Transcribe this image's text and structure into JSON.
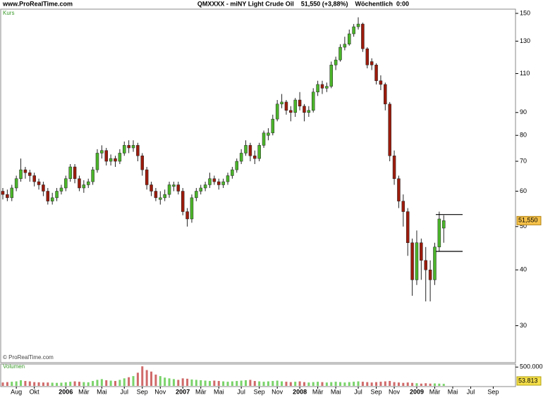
{
  "site": "www.ProRealTime.com",
  "chart_data": {
    "type": "candlestick",
    "title": "QMXXXX - miNY Light Crude Oil    51,550 (+3,88%)    Wöchentlich  0:00",
    "panel_label": "Kurs",
    "copyright": "© ProRealTime.com",
    "volume_label": "Volumen",
    "log_scale": true,
    "up_color": "#4bb52a",
    "down_color": "#9c1b0c",
    "ylim": [
      24.8,
      153.3
    ],
    "yticks": [
      30,
      40,
      50,
      60,
      70,
      80,
      90,
      110,
      130,
      150
    ],
    "categories": [
      null,
      null,
      null,
      "Aug",
      null,
      null,
      null,
      "Okt",
      null,
      null,
      null,
      null,
      null,
      null,
      "2006",
      null,
      null,
      null,
      "Mär",
      null,
      null,
      null,
      "Mai",
      null,
      null,
      null,
      null,
      "Jul",
      null,
      null,
      null,
      "Sep",
      null,
      null,
      null,
      "Nov",
      null,
      null,
      null,
      null,
      "2007",
      null,
      null,
      null,
      "Mär",
      null,
      null,
      null,
      "Mai",
      null,
      null,
      null,
      null,
      "Jul",
      null,
      null,
      null,
      "Sep",
      null,
      null,
      null,
      "Nov",
      null,
      null,
      null,
      null,
      "2008",
      null,
      null,
      null,
      "Mär",
      null,
      null,
      null,
      "Mai",
      null,
      null,
      null,
      null,
      "Jul",
      null,
      null,
      null,
      "Sep",
      null,
      null,
      null,
      "Nov",
      null,
      null,
      null,
      null,
      "2009",
      null,
      null,
      null,
      "Mär",
      null,
      null,
      null,
      "Mai",
      null,
      null,
      null,
      "Jul",
      null,
      null,
      null,
      null,
      "Sep",
      null,
      null
    ],
    "open": [
      60,
      59,
      58,
      61,
      64,
      67,
      66,
      65,
      63,
      62,
      60,
      57,
      58,
      60,
      61,
      64,
      68,
      64,
      61,
      62,
      63,
      67,
      73,
      74,
      70,
      71,
      70,
      73,
      76,
      75,
      76,
      72,
      67,
      62,
      60,
      57.5,
      58,
      59,
      61.5,
      62,
      60,
      54,
      52,
      58,
      60,
      61,
      62,
      64,
      63,
      62,
      63,
      65,
      67,
      70,
      73,
      76,
      72,
      71,
      76,
      80,
      81,
      87,
      94,
      95,
      91,
      90,
      96,
      93,
      90,
      91,
      100,
      104,
      102,
      103,
      115,
      118,
      126,
      128,
      135,
      140,
      142,
      125,
      117,
      115,
      106,
      104,
      94,
      72,
      64,
      57,
      54,
      46,
      38,
      46,
      42,
      40,
      38,
      45,
      49.6,
      null,
      null,
      null,
      null,
      null,
      null,
      null,
      null,
      null,
      null,
      null,
      null,
      null
    ],
    "high": [
      61,
      60.5,
      62,
      65,
      71,
      68,
      67,
      66,
      64,
      63,
      61,
      59.5,
      61,
      62,
      65,
      69,
      69,
      65,
      63.5,
      64,
      68,
      74.5,
      76,
      75,
      72.5,
      72,
      74.5,
      77.5,
      78,
      78,
      77,
      73,
      68,
      63,
      61,
      60,
      60.5,
      63,
      63,
      63,
      61,
      55,
      59,
      61,
      62,
      63,
      66,
      65,
      64,
      64,
      66,
      68,
      71,
      74.5,
      78,
      77,
      74,
      77,
      82,
      83,
      89,
      96,
      99,
      96,
      93,
      97,
      100,
      94,
      93,
      102,
      106,
      106,
      105,
      117,
      120,
      128,
      133,
      138,
      142,
      147,
      143,
      126,
      119,
      116,
      109,
      105,
      95,
      74,
      65,
      59,
      55,
      47,
      49,
      47,
      45,
      42,
      46,
      54,
      53,
      null,
      null,
      null,
      null,
      null,
      null,
      null,
      null,
      null,
      null,
      null,
      null,
      null
    ],
    "low": [
      57.5,
      57,
      57,
      60,
      63,
      64,
      63,
      61.5,
      60.5,
      58.5,
      56,
      56,
      57,
      59,
      60,
      63,
      62.5,
      60,
      59.5,
      61,
      62,
      66,
      71,
      68.5,
      68.5,
      68,
      69,
      72,
      73,
      73.5,
      70,
      65,
      60.5,
      58.5,
      57,
      56,
      57,
      58,
      60,
      59,
      53,
      50,
      51,
      57,
      59,
      60,
      61,
      62,
      60.5,
      61,
      62,
      64,
      66,
      69,
      72,
      70,
      69,
      70,
      75,
      78,
      80,
      86,
      92,
      89,
      86,
      88,
      91,
      86,
      88,
      90,
      98,
      99,
      100,
      102,
      112,
      117,
      124,
      127,
      133,
      138,
      123,
      113,
      112,
      104,
      101,
      91,
      70,
      62,
      55,
      50,
      43,
      35,
      37,
      38,
      34,
      34,
      37,
      44,
      46,
      null,
      null,
      null,
      null,
      null,
      null,
      null,
      null,
      null,
      null,
      null,
      null,
      null
    ],
    "close": [
      59,
      58,
      61,
      64,
      67,
      66,
      65,
      63,
      62,
      60,
      57,
      58,
      60,
      61,
      64,
      68,
      64,
      61,
      62,
      63,
      67,
      73,
      74,
      70,
      71,
      70,
      73,
      76,
      75,
      76,
      72,
      67,
      62,
      60,
      58,
      58,
      59,
      62,
      62,
      60,
      54,
      52,
      58,
      60,
      61,
      62,
      64,
      63,
      62,
      63,
      65,
      67,
      70,
      73,
      76,
      72,
      71,
      76,
      81,
      81,
      87,
      94,
      95,
      91,
      90,
      96,
      93,
      90,
      91,
      100,
      104,
      102,
      103,
      115,
      118,
      126,
      128,
      135,
      140,
      142,
      125,
      115,
      115,
      106,
      104,
      94,
      72,
      64,
      57,
      54,
      46,
      38,
      46,
      42,
      40,
      38,
      45,
      52,
      51.55,
      null,
      null,
      null,
      null,
      null,
      null,
      null,
      null,
      null,
      null,
      null,
      null,
      null
    ],
    "value_labels": [
      null,
      null,
      null,
      null,
      null,
      null,
      null,
      null,
      null,
      null,
      null,
      null,
      null,
      null,
      null,
      null,
      null,
      null,
      null,
      null,
      null,
      null,
      null,
      null,
      null,
      null,
      null,
      null,
      null,
      null,
      null,
      null,
      null,
      null,
      null,
      null,
      null,
      null,
      null,
      null,
      null,
      null,
      null,
      null,
      null,
      null,
      null,
      null,
      null,
      null,
      null,
      null,
      null,
      null,
      null,
      null,
      null,
      null,
      null,
      null,
      null,
      null,
      null,
      null,
      null,
      null,
      null,
      null,
      null,
      null,
      null,
      null,
      null,
      null,
      null,
      null,
      null,
      null,
      null,
      null,
      null,
      null,
      null,
      null,
      null,
      null,
      null,
      null,
      null,
      null,
      null,
      null,
      null,
      null,
      null,
      null,
      null,
      null,
      "51,550",
      null,
      null,
      null,
      null,
      null,
      null,
      null,
      null,
      null,
      null,
      null,
      null,
      null
    ],
    "levels": [
      53.2,
      44
    ],
    "volume": [
      90000,
      100000,
      110000,
      120000,
      150000,
      130000,
      120000,
      100000,
      95000,
      90000,
      90000,
      85000,
      80000,
      85000,
      95000,
      110000,
      120000,
      110000,
      100000,
      95000,
      130000,
      160000,
      180000,
      150000,
      140000,
      130000,
      160000,
      200000,
      230000,
      260000,
      350000,
      520000,
      420000,
      380000,
      300000,
      260000,
      220000,
      200000,
      180000,
      160000,
      200000,
      190000,
      170000,
      160000,
      150000,
      140000,
      130000,
      140000,
      130000,
      120000,
      110000,
      120000,
      130000,
      140000,
      150000,
      160000,
      130000,
      120000,
      110000,
      120000,
      130000,
      140000,
      120000,
      110000,
      100000,
      110000,
      120000,
      100000,
      90000,
      100000,
      110000,
      100000,
      90000,
      100000,
      110000,
      100000,
      90000,
      100000,
      110000,
      120000,
      110000,
      100000,
      90000,
      100000,
      110000,
      120000,
      130000,
      100000,
      90000,
      80000,
      90000,
      80000,
      70000,
      60000,
      70000,
      60000,
      65000,
      60000,
      53813,
      null,
      null,
      null,
      null,
      null,
      null,
      null,
      null,
      null,
      null,
      null,
      null,
      null
    ],
    "volume_value_labels": [
      null,
      null,
      null,
      null,
      null,
      null,
      null,
      null,
      null,
      null,
      null,
      null,
      null,
      null,
      null,
      null,
      null,
      null,
      null,
      null,
      null,
      null,
      null,
      null,
      null,
      null,
      null,
      null,
      null,
      null,
      null,
      null,
      null,
      null,
      null,
      null,
      null,
      null,
      null,
      null,
      null,
      null,
      null,
      null,
      null,
      null,
      null,
      null,
      null,
      null,
      null,
      null,
      null,
      null,
      null,
      null,
      null,
      null,
      null,
      null,
      null,
      null,
      null,
      null,
      null,
      null,
      null,
      null,
      null,
      null,
      null,
      null,
      null,
      null,
      null,
      null,
      null,
      null,
      null,
      null,
      null,
      null,
      null,
      null,
      null,
      null,
      null,
      null,
      null,
      null,
      null,
      null,
      null,
      null,
      null,
      null,
      null,
      null,
      "53.813",
      null,
      null,
      null,
      null,
      null,
      null,
      null,
      null,
      null,
      null,
      null,
      null,
      null
    ],
    "y2lim": [
      0,
      580000
    ],
    "y2ticks": [
      {
        "value": 500000,
        "label": "500.000"
      }
    ]
  }
}
